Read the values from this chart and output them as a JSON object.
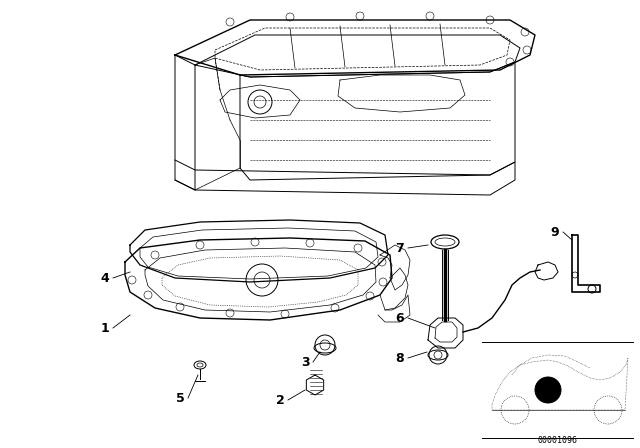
{
  "background_color": "#ffffff",
  "line_color": "#000000",
  "line_width": 0.7,
  "text_color": "#000000",
  "font_size": 8,
  "code": "00001096"
}
